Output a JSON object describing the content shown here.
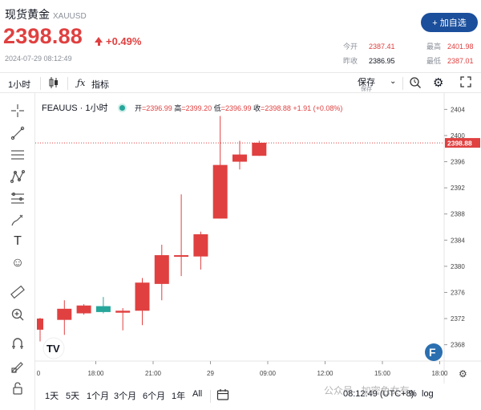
{
  "header": {
    "title": "现货黄金",
    "symbol": "XAUUSD",
    "add_button": "+ 加自选",
    "price": "2398.88",
    "change_pct": "+0.49%",
    "timestamp": "2024-07-29 08:12:49",
    "stats": [
      {
        "label": "今开",
        "value": "2387.41"
      },
      {
        "label": "最高",
        "value": "2401.98"
      },
      {
        "label": "昨收",
        "value": "2386.95"
      },
      {
        "label": "最低",
        "value": "2387.01"
      }
    ],
    "colors": {
      "up": "#e04040",
      "down": "#26a69a",
      "brand": "#1b4f9c"
    }
  },
  "toolbar": {
    "interval": "1小时",
    "indicators": "指标",
    "save": "保存",
    "save_sub": "保存"
  },
  "legend": {
    "title": "FEAUUS · 1小时",
    "open_label": "开",
    "open": "2396.99",
    "high_label": "高",
    "high": "2399.20",
    "low_label": "低",
    "low": "2396.99",
    "close_label": "收",
    "close": "2398.88",
    "change": "+1.91 (+0.08%)"
  },
  "bottom": {
    "ranges": [
      "1天",
      "5天",
      "1个月",
      "3个月",
      "6个月",
      "1年",
      "All"
    ],
    "time": "08:12:49 (UTC+8)",
    "pct": "%",
    "log": "log",
    "watermark": "公众号 · 加密色女有"
  },
  "chart_data": {
    "type": "candlestick",
    "last_price_label": "2398.88",
    "x_ticks": [
      "0",
      "18:00",
      "21:00",
      "29",
      "09:00",
      "12:00",
      "15:00",
      "18:00"
    ],
    "y_ticks": [
      2404,
      2400,
      2396,
      2392,
      2388,
      2384,
      2380,
      2376,
      2372,
      2368
    ],
    "ylim": [
      2365.5,
      2406.5
    ],
    "candles": [
      {
        "o": 2370.3,
        "h": 2372.1,
        "l": 2368.5,
        "c": 2372.0
      },
      {
        "o": 2371.8,
        "h": 2374.8,
        "l": 2369.5,
        "c": 2373.5
      },
      {
        "o": 2372.8,
        "h": 2374.2,
        "l": 2372.6,
        "c": 2374.0
      },
      {
        "o": 2373.9,
        "h": 2375.3,
        "l": 2372.8,
        "c": 2373.0
      },
      {
        "o": 2372.9,
        "h": 2373.6,
        "l": 2370.2,
        "c": 2373.2
      },
      {
        "o": 2373.2,
        "h": 2378.2,
        "l": 2371.0,
        "c": 2377.5
      },
      {
        "o": 2377.3,
        "h": 2383.3,
        "l": 2374.8,
        "c": 2381.7
      },
      {
        "o": 2381.5,
        "h": 2391.0,
        "l": 2378.5,
        "c": 2381.7
      },
      {
        "o": 2381.5,
        "h": 2385.3,
        "l": 2379.5,
        "c": 2384.9
      },
      {
        "o": 2387.3,
        "h": 2403.0,
        "l": 2387.3,
        "c": 2395.5
      },
      {
        "o": 2396.0,
        "h": 2399.2,
        "l": 2394.8,
        "c": 2397.1
      },
      {
        "o": 2396.9,
        "h": 2399.2,
        "l": 2396.9,
        "c": 2398.9
      }
    ]
  }
}
